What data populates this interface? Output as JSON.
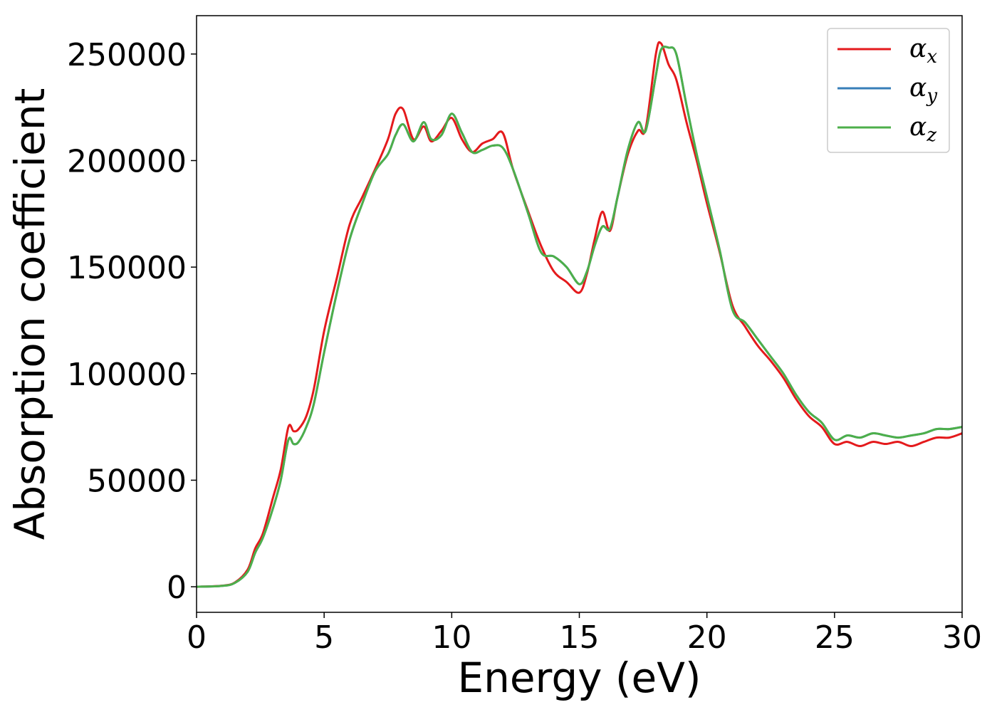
{
  "chart_data": {
    "type": "line",
    "title": "",
    "xlabel": "Energy (eV)",
    "ylabel": "Absorption coefficient",
    "xlim": [
      0,
      30
    ],
    "ylim": [
      -12000,
      268000
    ],
    "xticks": [
      0,
      5,
      10,
      15,
      20,
      25,
      30
    ],
    "yticks": [
      0,
      50000,
      100000,
      150000,
      200000,
      250000
    ],
    "grid": false,
    "legend_position": "top-right",
    "series": [
      {
        "name": "α",
        "subscript": "x",
        "color": "#e41a1c",
        "x": [
          0,
          1,
          1.5,
          2,
          2.3,
          2.6,
          3.0,
          3.3,
          3.6,
          3.8,
          4.0,
          4.3,
          4.6,
          5.0,
          5.5,
          6.0,
          6.5,
          7.0,
          7.5,
          7.8,
          8.1,
          8.5,
          8.9,
          9.2,
          9.6,
          10.0,
          10.4,
          10.8,
          11.2,
          11.6,
          12.0,
          12.4,
          13.0,
          13.5,
          14.0,
          14.5,
          15.0,
          15.3,
          15.6,
          15.9,
          16.2,
          16.5,
          16.9,
          17.3,
          17.6,
          18.0,
          18.2,
          18.5,
          18.8,
          19.2,
          19.6,
          20.0,
          20.5,
          21.0,
          21.5,
          22.0,
          22.5,
          23.0,
          23.5,
          24.0,
          24.5,
          25.0,
          25.5,
          26.0,
          26.5,
          27.0,
          27.5,
          28.0,
          28.5,
          29.0,
          29.5,
          30.0
        ],
        "y": [
          0,
          500,
          2000,
          8000,
          18000,
          25000,
          42000,
          55000,
          75000,
          73000,
          74000,
          80000,
          93000,
          120000,
          145000,
          170000,
          183000,
          196000,
          210000,
          222000,
          224000,
          210000,
          216000,
          209000,
          214000,
          220000,
          210000,
          204000,
          208000,
          210000,
          213000,
          196000,
          176000,
          160000,
          148000,
          143000,
          138000,
          147000,
          163000,
          176000,
          167000,
          183000,
          203000,
          214000,
          215000,
          250000,
          255000,
          245000,
          238000,
          218000,
          200000,
          180000,
          157000,
          132000,
          122000,
          113000,
          106000,
          98000,
          88000,
          80000,
          75000,
          67000,
          68000,
          66000,
          68000,
          67000,
          68000,
          66000,
          68000,
          70000,
          70000,
          72000
        ]
      },
      {
        "name": "α",
        "subscript": "y",
        "color": "#377eb8",
        "x": [
          0,
          1,
          1.5,
          2,
          2.3,
          2.6,
          3.0,
          3.3,
          3.6,
          3.8,
          4.0,
          4.3,
          4.6,
          5.0,
          5.5,
          6.0,
          6.5,
          7.0,
          7.5,
          7.8,
          8.1,
          8.5,
          8.9,
          9.2,
          9.6,
          10.0,
          10.4,
          10.8,
          11.2,
          11.6,
          12.0,
          12.4,
          13.0,
          13.5,
          14.0,
          14.5,
          15.0,
          15.3,
          15.6,
          15.9,
          16.2,
          16.5,
          16.9,
          17.3,
          17.6,
          18.0,
          18.2,
          18.5,
          18.8,
          19.2,
          19.6,
          20.0,
          20.5,
          21.0,
          21.5,
          22.0,
          22.5,
          23.0,
          23.5,
          24.0,
          24.5,
          25.0,
          25.5,
          26.0,
          26.5,
          27.0,
          27.5,
          28.0,
          28.5,
          29.0,
          29.5,
          30.0
        ],
        "y": [
          0,
          400,
          1800,
          7000,
          16000,
          23000,
          37000,
          50000,
          69000,
          67000,
          68000,
          75000,
          86000,
          110000,
          138000,
          163000,
          180000,
          195000,
          203000,
          212000,
          217000,
          209000,
          218000,
          210000,
          212000,
          222000,
          213000,
          204000,
          205000,
          207000,
          206000,
          196000,
          175000,
          157000,
          155000,
          150000,
          142000,
          148000,
          160000,
          169000,
          168000,
          183000,
          205000,
          218000,
          214000,
          240000,
          252000,
          253000,
          250000,
          226000,
          203000,
          183000,
          158000,
          130000,
          124000,
          116000,
          108000,
          100000,
          90000,
          82000,
          77000,
          69000,
          71000,
          70000,
          72000,
          71000,
          70000,
          71000,
          72000,
          74000,
          74000,
          75000
        ]
      },
      {
        "name": "α",
        "subscript": "z",
        "color": "#4daf4a",
        "x": [
          0,
          1,
          1.5,
          2,
          2.3,
          2.6,
          3.0,
          3.3,
          3.6,
          3.8,
          4.0,
          4.3,
          4.6,
          5.0,
          5.5,
          6.0,
          6.5,
          7.0,
          7.5,
          7.8,
          8.1,
          8.5,
          8.9,
          9.2,
          9.6,
          10.0,
          10.4,
          10.8,
          11.2,
          11.6,
          12.0,
          12.4,
          13.0,
          13.5,
          14.0,
          14.5,
          15.0,
          15.3,
          15.6,
          15.9,
          16.2,
          16.5,
          16.9,
          17.3,
          17.6,
          18.0,
          18.2,
          18.5,
          18.8,
          19.2,
          19.6,
          20.0,
          20.5,
          21.0,
          21.5,
          22.0,
          22.5,
          23.0,
          23.5,
          24.0,
          24.5,
          25.0,
          25.5,
          26.0,
          26.5,
          27.0,
          27.5,
          28.0,
          28.5,
          29.0,
          29.5,
          30.0
        ],
        "y": [
          0,
          400,
          1800,
          7000,
          16000,
          23000,
          37000,
          50000,
          69000,
          67000,
          68000,
          75000,
          86000,
          110000,
          138000,
          163000,
          180000,
          195000,
          203000,
          212000,
          217000,
          209000,
          218000,
          210000,
          212000,
          222000,
          213000,
          204000,
          205000,
          207000,
          206000,
          196000,
          175000,
          157000,
          155000,
          150000,
          142000,
          148000,
          160000,
          169000,
          168000,
          183000,
          205000,
          218000,
          214000,
          240000,
          252000,
          253000,
          250000,
          226000,
          203000,
          183000,
          158000,
          130000,
          124000,
          116000,
          108000,
          100000,
          90000,
          82000,
          77000,
          69000,
          71000,
          70000,
          72000,
          71000,
          70000,
          71000,
          72000,
          74000,
          74000,
          75000
        ]
      }
    ]
  }
}
